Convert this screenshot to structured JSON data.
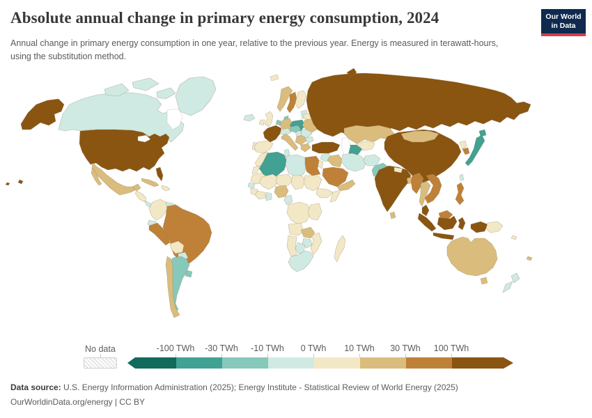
{
  "header": {
    "title": "Absolute annual change in primary energy consumption, 2024",
    "subtitle": "Annual change in primary energy consumption in one year, relative to the previous year. Energy is measured in terawatt-hours, using the substitution method."
  },
  "logo": {
    "line1": "Our World",
    "line2": "in Data",
    "bg_color": "#0f2a4e",
    "accent_color": "#d23d4e"
  },
  "legend": {
    "no_data_label": "No data",
    "tick_labels": [
      "-100 TWh",
      "-30 TWh",
      "-10 TWh",
      "0 TWh",
      "10 TWh",
      "30 TWh",
      "100 TWh"
    ],
    "bins": [
      {
        "id": "lt-100",
        "label": "less than -100 TWh",
        "color": "#106b5d"
      },
      {
        "id": "-100--30",
        "label": "-100 TWh to -30 TWh",
        "color": "#41a193"
      },
      {
        "id": "-30--10",
        "label": "-30 TWh to -10 TWh",
        "color": "#86c9bb"
      },
      {
        "id": "-10-0",
        "label": "-10 TWh to 0 TWh",
        "color": "#cfeae2"
      },
      {
        "id": "0-10",
        "label": "0 TWh to 10 TWh",
        "color": "#f3e8c6"
      },
      {
        "id": "10-30",
        "label": "10 TWh to 30 TWh",
        "color": "#dabd7c"
      },
      {
        "id": "30-100",
        "label": "30 TWh to 100 TWh",
        "color": "#bf8137"
      },
      {
        "id": "gt100",
        "label": "more than 100 TWh",
        "color": "#8a5511"
      }
    ]
  },
  "chart_data": {
    "type": "choropleth-map",
    "title": "Absolute annual change in primary energy consumption, 2024",
    "unit": "TWh",
    "year": "2024",
    "legend_bins": [
      "lt-100",
      "-100--30",
      "-30--10",
      "-10-0",
      "0-10",
      "10-30",
      "30-100",
      "gt100"
    ],
    "countries": {
      "united-states": "gt100",
      "hawaii": "gt100",
      "canada": "-10-0",
      "greenland": "-10-0",
      "mexico": "10-30",
      "guatemala": "0-10",
      "costa-rica-panama": "-10-0",
      "cuba": "10-30",
      "hispaniola": "0-10",
      "colombia": "0-10",
      "venezuela": "-10-0",
      "guyanas": "-10-0",
      "ecuador": "-10-0",
      "peru": "30-100",
      "brazil": "30-100",
      "bolivia": "0-10",
      "paraguay": "-10-0",
      "chile": "10-30",
      "argentina": "-30--10",
      "uruguay": "-30--10",
      "iceland": "-10-0",
      "united-kingdom": "0-10",
      "ireland": "0-10",
      "norway": "10-30",
      "sweden": "30-100",
      "finland": "0-10",
      "denmark": "-30--10",
      "baltics": "-10-0",
      "poland": "-100--30",
      "germany": "10-30",
      "netherlands-belgium": "-30--10",
      "france": "gt100",
      "spain": "0-10",
      "portugal": "0-10",
      "italy": "10-30",
      "switzerland-austria": "-10-0",
      "czechia-slovakia": "-30--10",
      "hungary": "-10-0",
      "serbia-balkans": "10-30",
      "romania": "-10-0",
      "bulgaria": "-10-0",
      "greece": "10-30",
      "ukraine": "10-30",
      "belarus": "0-10",
      "russia": "gt100",
      "svalbard": "0-10",
      "kazakhstan": "10-30",
      "uzbekistan": "0-10",
      "turkmenistan": "-100--30",
      "turkey": "gt100",
      "syria": "-10-0",
      "israel-jordan": "0-10",
      "iraq": "10-30",
      "saudi-arabia": "30-100",
      "yemen-oman": "10-30",
      "iran": "-10-0",
      "afghanistan": "-10-0",
      "pakistan": "-30--10",
      "india": "gt100",
      "sri-lanka": "10-30",
      "nepal": "0-10",
      "bangladesh": "10-30",
      "china": "gt100",
      "mongolia": "10-30",
      "north-korea": "0-10",
      "south-korea": "30-100",
      "japan": "-100--30",
      "taiwan": "-10-0",
      "myanmar": "30-100",
      "thailand": "10-30",
      "vietnam-laos-cambodia": "30-100",
      "malaysia": "gt100",
      "sumatra-indonesia": "gt100",
      "java-indonesia": "gt100",
      "borneo-malaysia": "30-100",
      "borneo-indonesia": "gt100",
      "sulawesi-indonesia": "gt100",
      "philippines": "30-100",
      "papua-indonesia": "gt100",
      "papua-new-guinea": "0-10",
      "fiji": "10-30",
      "solomon-islands": "0-10",
      "australia": "10-30",
      "tasmania": "10-30",
      "new-zealand": "-10-0",
      "morocco": "0-10",
      "western-sahara": "0-10",
      "algeria": "-100--30",
      "tunisia": "-10-0",
      "libya": "-10-0",
      "egypt": "30-100",
      "mauritania": "0-10",
      "mali": "0-10",
      "niger": "0-10",
      "chad": "0-10",
      "sudan": "0-10",
      "senegal": "-10-0",
      "guinea": "0-10",
      "cote-divoire": "0-10",
      "ghana": "-10-0",
      "nigeria": "10-30",
      "cameroon": "-10-0",
      "ethiopia": "0-10",
      "somalia": "0-10",
      "drc": "0-10",
      "kenya-tanzania": "0-10",
      "angola": "0-10",
      "zambia": "10-30",
      "mozambique": "0-10",
      "zimbabwe": "-10-0",
      "botswana": "-10-0",
      "namibia": "0-10",
      "south-africa": "-10-0",
      "madagascar": "0-10"
    }
  },
  "footer": {
    "datasource_label": "Data source:",
    "datasource_text": " U.S. Energy Information Administration (2025); Energy Institute - Statistical Review of World Energy (2025)",
    "link_text": "OurWorldinData.org/energy",
    "license_text": " | CC BY"
  }
}
